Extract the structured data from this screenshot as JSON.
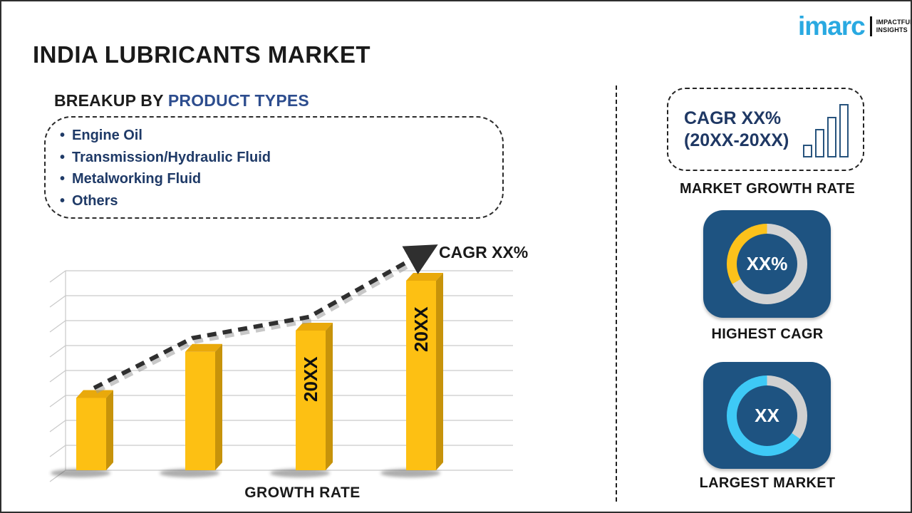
{
  "page": {
    "title": "INDIA LUBRICANTS MARKET"
  },
  "logo": {
    "brand": "imarc",
    "tagline_line1": "IMPACTFUL",
    "tagline_line2": "INSIGHTS",
    "brand_color": "#29a9e1"
  },
  "breakup": {
    "heading_prefix": "BREAKUP BY ",
    "heading_highlight": "PRODUCT TYPES",
    "items": [
      "Engine Oil",
      "Transmission/Hydraulic Fluid",
      "Metalworking Fluid",
      "Others"
    ]
  },
  "chart_data": {
    "type": "bar",
    "title": "",
    "xlabel": "GROWTH RATE",
    "ylabel": "",
    "categories": [
      "",
      "",
      "20XX",
      "20XX"
    ],
    "values": [
      2.9,
      4.75,
      5.6,
      7.6
    ],
    "bar_labels": [
      "",
      "",
      "20XX",
      "20XX"
    ],
    "ylim": [
      0,
      8
    ],
    "gridlines": 9,
    "grid_on": true,
    "bar_color": "#fdc013",
    "bar_side_color": "#c7930a",
    "bar_top_color": "#e9a90b",
    "trend": {
      "label": "CAGR XX%",
      "points_units": [
        3.3,
        5.3,
        6.15,
        8.8
      ],
      "line_color": "#2f2f2f",
      "style": "dashed-arrow"
    }
  },
  "sidebar": {
    "cagr_box": {
      "line1": "CAGR XX%",
      "line2": "(20XX-20XX)"
    },
    "market_growth_rate_label": "MARKET GROWTH RATE",
    "highest_cagr": {
      "value": "XX%",
      "label": "HIGHEST CAGR"
    },
    "largest_market": {
      "value": "XX",
      "label": "LARGEST MARKET"
    }
  },
  "colors": {
    "accent_navy": "#1f3864",
    "heading_blue": "#2d4d8e",
    "card_blue": "#1e5381",
    "donut_yellow": "#fcc21b",
    "donut_cyan": "#3ec9f6",
    "ring_gray": "#d3d3d3",
    "bar_gold": "#fdc013"
  }
}
